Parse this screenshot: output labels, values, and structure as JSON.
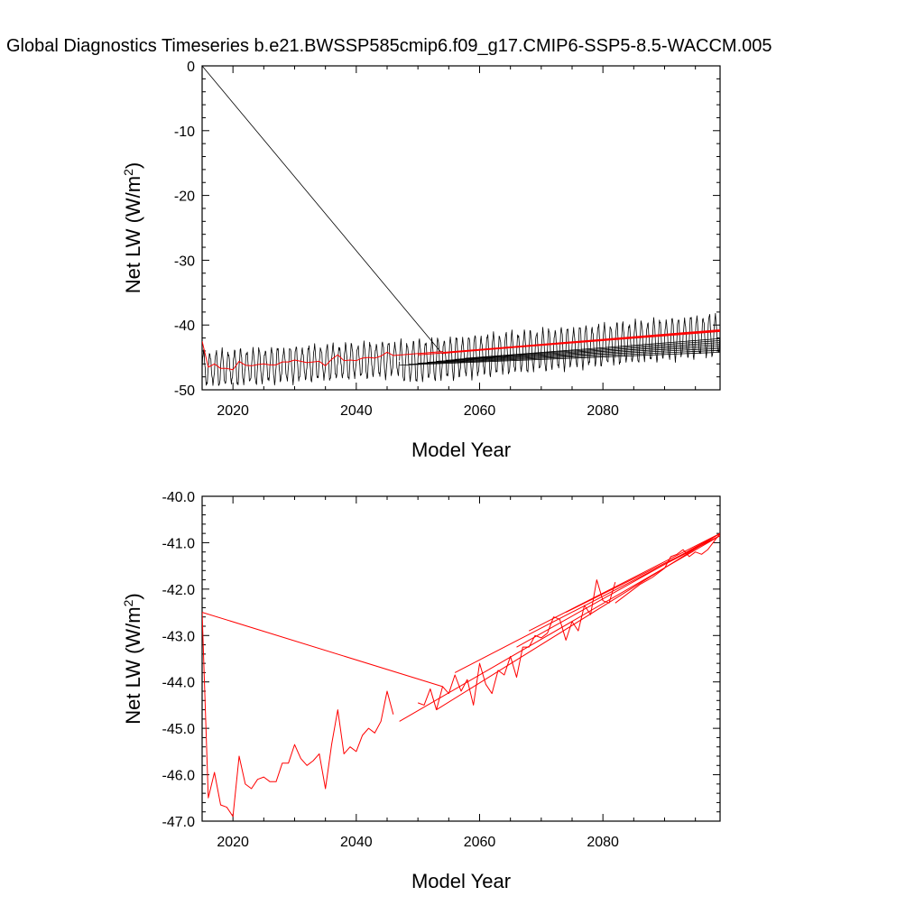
{
  "title": "Global Diagnostics Timeseries b.e21.BWSSP585cmip6.f09_g17.CMIP6-SSP5-8.5-WACCM.005",
  "chart_data": [
    {
      "type": "line",
      "xlabel": "Model Year",
      "ylabel_main": "Net LW (W/m",
      "ylabel_sup": "2",
      "ylabel_tail": ")",
      "xlim": [
        2015,
        2099
      ],
      "ylim": [
        -50,
        0
      ],
      "x_ticks": [
        2020,
        2040,
        2060,
        2080
      ],
      "x_tick_labels": [
        "2020",
        "2040",
        "2060",
        "2080"
      ],
      "y_ticks": [
        0,
        -10,
        -20,
        -30,
        -40,
        -50
      ],
      "y_tick_labels": [
        "0",
        "-10",
        "-20",
        "-30",
        "-40",
        "-50"
      ],
      "monthly_series": {
        "color": "#000000",
        "description_points": [
          {
            "x": 2015.0,
            "y": 0.0
          },
          {
            "x": 2054.0,
            "y": -44.5
          }
        ],
        "segments": [
          {
            "x_start": 2015.0,
            "x_end": 2047.0,
            "mean_start": -46.8,
            "mean_end": -45.2,
            "amplitude": 2.5
          },
          {
            "x_start": 2047.0,
            "x_end": 2099.0,
            "mean_start": -45.8,
            "mean_end": -41.5,
            "amplitude": 3.0
          }
        ]
      },
      "annual_series": {
        "color": "#ff0000",
        "x": [
          2015,
          2016,
          2017,
          2018,
          2019,
          2020,
          2021,
          2022,
          2023,
          2024,
          2025,
          2026,
          2027,
          2028,
          2029,
          2030,
          2031,
          2032,
          2033,
          2034,
          2035,
          2036,
          2037,
          2038,
          2039,
          2040,
          2041,
          2042,
          2043,
          2044,
          2045,
          2046,
          2054
        ],
        "y": [
          -42.5,
          -46.5,
          -46.0,
          -46.7,
          -46.7,
          -46.9,
          -45.6,
          -46.2,
          -46.3,
          -46.1,
          -46.0,
          -46.15,
          -46.15,
          -45.7,
          -45.7,
          -45.4,
          -45.6,
          -45.8,
          -45.7,
          -45.6,
          -46.3,
          -45.3,
          -44.6,
          -45.5,
          -45.4,
          -45.5,
          -45.1,
          -45.0,
          -45.1,
          -44.8,
          -44.2,
          -44.7,
          -44.1
        ]
      }
    },
    {
      "type": "line",
      "xlabel": "Model Year",
      "ylabel_main": "Net LW (W/m",
      "ylabel_sup": "2",
      "ylabel_tail": ")",
      "xlim": [
        2015,
        2099
      ],
      "ylim": [
        -47.0,
        -40.0
      ],
      "x_ticks": [
        2020,
        2040,
        2060,
        2080
      ],
      "x_tick_labels": [
        "2020",
        "2040",
        "2060",
        "2080"
      ],
      "y_ticks": [
        -40.0,
        -41.0,
        -42.0,
        -43.0,
        -44.0,
        -45.0,
        -46.0,
        -47.0
      ],
      "y_tick_labels": [
        "-40.0",
        "-41.0",
        "-42.0",
        "-43.0",
        "-44.0",
        "-45.0",
        "-46.0",
        "-47.0"
      ],
      "series": [
        {
          "color": "#ff0000",
          "x": [
            2015,
            2016,
            2017,
            2018,
            2019,
            2020,
            2021,
            2022,
            2023,
            2024,
            2025,
            2026,
            2027,
            2028,
            2029,
            2030,
            2031,
            2032,
            2033,
            2034,
            2035,
            2036,
            2037,
            2038,
            2039,
            2040,
            2041,
            2042,
            2043,
            2044,
            2045,
            2046
          ],
          "y": [
            -42.5,
            -46.5,
            -45.95,
            -46.65,
            -46.7,
            -46.9,
            -45.6,
            -46.2,
            -46.3,
            -46.1,
            -46.05,
            -46.15,
            -46.15,
            -45.75,
            -45.75,
            -45.35,
            -45.65,
            -45.8,
            -45.7,
            -45.55,
            -46.3,
            -45.35,
            -44.6,
            -45.55,
            -45.4,
            -45.5,
            -45.15,
            -45.0,
            -45.1,
            -44.85,
            -44.2,
            -44.7
          ]
        },
        {
          "color": "#ff0000",
          "x": [
            2015,
            2054
          ],
          "y": [
            -42.5,
            -44.1
          ]
        },
        {
          "color": "#ff0000",
          "x": [
            2050,
            2051,
            2052,
            2053,
            2054,
            2055,
            2056,
            2057,
            2058,
            2059,
            2060,
            2061,
            2062,
            2063,
            2064,
            2065,
            2066,
            2067,
            2068,
            2069,
            2070,
            2071,
            2072,
            2073,
            2074,
            2075,
            2076,
            2077,
            2078,
            2079,
            2080,
            2081,
            2082
          ],
          "y": [
            -44.45,
            -44.5,
            -44.15,
            -44.6,
            -44.1,
            -44.25,
            -43.85,
            -44.2,
            -43.95,
            -44.5,
            -43.6,
            -44.05,
            -44.25,
            -43.75,
            -43.85,
            -43.45,
            -43.9,
            -43.25,
            -43.25,
            -43.0,
            -43.05,
            -42.95,
            -42.6,
            -42.65,
            -43.1,
            -42.7,
            -42.9,
            -42.35,
            -42.55,
            -41.8,
            -42.25,
            -42.3,
            -41.85
          ]
        },
        {
          "color": "#ff0000",
          "x": [
            2047,
            2099
          ],
          "y": [
            -44.85,
            -40.85
          ]
        },
        {
          "color": "#ff0000",
          "x": [
            2053,
            2099
          ],
          "y": [
            -44.6,
            -40.8
          ]
        },
        {
          "color": "#ff0000",
          "x": [
            2056,
            2099
          ],
          "y": [
            -43.8,
            -40.85
          ]
        },
        {
          "color": "#ff0000",
          "x": [
            2066,
            2099
          ],
          "y": [
            -43.25,
            -40.8
          ]
        },
        {
          "color": "#ff0000",
          "x": [
            2068,
            2099
          ],
          "y": [
            -42.9,
            -40.8
          ]
        },
        {
          "color": "#ff0000",
          "x": [
            2074,
            2099
          ],
          "y": [
            -42.5,
            -40.85
          ]
        },
        {
          "color": "#ff0000",
          "x": [
            2082,
            2086,
            2088,
            2090,
            2091,
            2092,
            2093,
            2094,
            2095,
            2096,
            2097,
            2099
          ],
          "y": [
            -42.3,
            -41.9,
            -41.75,
            -41.55,
            -41.3,
            -41.25,
            -41.15,
            -41.3,
            -41.2,
            -41.25,
            -41.15,
            -40.8
          ]
        }
      ]
    }
  ]
}
